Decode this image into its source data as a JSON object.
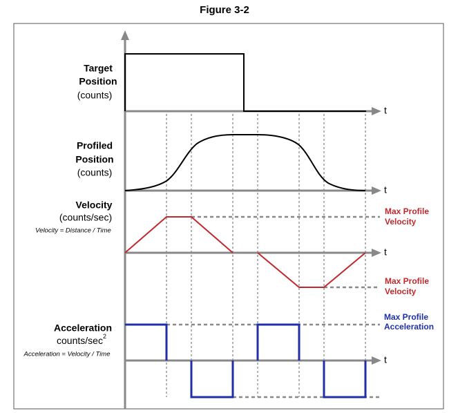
{
  "title": "Figure 3-2",
  "panels": [
    {
      "label": [
        "Target",
        "Position"
      ],
      "unit": "(counts)",
      "axis": "t"
    },
    {
      "label": [
        "Profiled",
        "Position"
      ],
      "unit": "(counts)",
      "axis": "t"
    },
    {
      "label": [
        "Velocity"
      ],
      "unit": "(counts/sec)",
      "formula": "Velocity = Distance / Time",
      "axis": "t"
    },
    {
      "label": [
        "Acceleration"
      ],
      "unit": "counts/sec",
      "unit_power": "2",
      "formula": "Acceleration = Velocity / Time",
      "axis": "t"
    }
  ],
  "annotations": [
    {
      "lines": [
        "Max Profile",
        "Velocity"
      ]
    },
    {
      "lines": [
        "Max Profile",
        "Velocity"
      ]
    },
    {
      "lines": [
        "Max Profile",
        "Acceleration"
      ]
    }
  ]
}
